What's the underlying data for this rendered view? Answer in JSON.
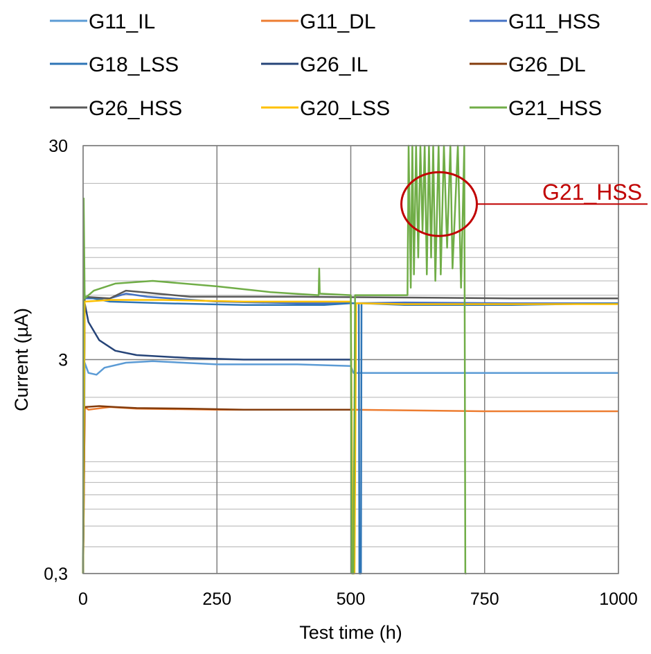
{
  "chart_data": {
    "type": "line",
    "xlabel": "Test time (h)",
    "ylabel": "Current (µA)",
    "xlim": [
      0,
      1000
    ],
    "ylim": [
      0.3,
      30
    ],
    "y_scale": "log",
    "x_ticks": [
      0,
      250,
      500,
      750,
      1000
    ],
    "x_tick_labels": [
      "0",
      "250",
      "500",
      "750",
      "1000"
    ],
    "y_ticks": [
      0.3,
      3,
      30
    ],
    "y_tick_labels": [
      "0,3",
      "3",
      "30"
    ],
    "grid": true,
    "legend_position": "top",
    "annotation": {
      "text": "G21_HSS",
      "series": "G21_HSS",
      "x_range": [
        610,
        720
      ]
    },
    "series": [
      {
        "name": "G11_IL",
        "color": "#5B9BD5",
        "points": [
          [
            0,
            0.3
          ],
          [
            3,
            2.9
          ],
          [
            10,
            2.6
          ],
          [
            25,
            2.55
          ],
          [
            40,
            2.75
          ],
          [
            80,
            2.9
          ],
          [
            130,
            2.95
          ],
          [
            250,
            2.85
          ],
          [
            400,
            2.85
          ],
          [
            500,
            2.8
          ],
          [
            505,
            2.6
          ],
          [
            600,
            2.6
          ],
          [
            800,
            2.6
          ],
          [
            1000,
            2.6
          ]
        ]
      },
      {
        "name": "G11_DL",
        "color": "#ED7D31",
        "points": [
          [
            0,
            0.3
          ],
          [
            3,
            1.8
          ],
          [
            10,
            1.75
          ],
          [
            50,
            1.8
          ],
          [
            100,
            1.77
          ],
          [
            250,
            1.75
          ],
          [
            500,
            1.75
          ],
          [
            750,
            1.72
          ],
          [
            1000,
            1.72
          ]
        ]
      },
      {
        "name": "G11_HSS",
        "color": "#4472C4",
        "points": [
          [
            0,
            0.3
          ],
          [
            3,
            5.8
          ],
          [
            50,
            5.8
          ],
          [
            80,
            6.1
          ],
          [
            120,
            5.9
          ],
          [
            250,
            5.6
          ],
          [
            400,
            5.5
          ],
          [
            500,
            5.5
          ],
          [
            505,
            5.5
          ],
          [
            600,
            5.55
          ],
          [
            800,
            5.5
          ],
          [
            1000,
            5.5
          ]
        ]
      },
      {
        "name": "G18_LSS",
        "color": "#2E75B6",
        "points": [
          [
            0,
            0.3
          ],
          [
            3,
            5.9
          ],
          [
            50,
            5.6
          ],
          [
            150,
            5.5
          ],
          [
            300,
            5.4
          ],
          [
            450,
            5.4
          ],
          [
            500,
            5.5
          ],
          [
            515,
            5.5
          ],
          [
            516,
            0.3
          ],
          [
            519,
            0.3
          ],
          [
            520,
            5.5
          ],
          [
            600,
            5.4
          ],
          [
            800,
            5.4
          ],
          [
            1000,
            5.5
          ]
        ]
      },
      {
        "name": "G26_IL",
        "color": "#264478",
        "points": [
          [
            0,
            0.3
          ],
          [
            3,
            5.5
          ],
          [
            10,
            4.5
          ],
          [
            30,
            3.7
          ],
          [
            60,
            3.3
          ],
          [
            100,
            3.15
          ],
          [
            200,
            3.05
          ],
          [
            300,
            3.0
          ],
          [
            400,
            3.0
          ],
          [
            500,
            3.0
          ]
        ]
      },
      {
        "name": "G26_DL",
        "color": "#843C0C",
        "points": [
          [
            0,
            0.3
          ],
          [
            3,
            1.8
          ],
          [
            30,
            1.82
          ],
          [
            60,
            1.8
          ],
          [
            100,
            1.78
          ],
          [
            200,
            1.77
          ],
          [
            300,
            1.75
          ],
          [
            400,
            1.75
          ],
          [
            500,
            1.75
          ]
        ]
      },
      {
        "name": "G26_HSS",
        "color": "#595959",
        "points": [
          [
            0,
            0.3
          ],
          [
            3,
            5.9
          ],
          [
            50,
            5.8
          ],
          [
            80,
            6.3
          ],
          [
            110,
            6.2
          ],
          [
            200,
            5.9
          ],
          [
            400,
            5.9
          ],
          [
            600,
            5.85
          ],
          [
            800,
            5.8
          ],
          [
            1000,
            5.8
          ]
        ]
      },
      {
        "name": "G20_LSS",
        "color": "#FFC000",
        "points": [
          [
            0,
            0.3
          ],
          [
            3,
            5.6
          ],
          [
            50,
            5.7
          ],
          [
            150,
            5.7
          ],
          [
            300,
            5.6
          ],
          [
            450,
            5.6
          ],
          [
            500,
            5.6
          ],
          [
            504,
            0.3
          ],
          [
            507,
            0.3
          ],
          [
            510,
            5.5
          ],
          [
            600,
            5.45
          ],
          [
            800,
            5.45
          ],
          [
            1000,
            5.45
          ]
        ]
      },
      {
        "name": "G21_HSS",
        "color": "#70AD47",
        "points": [
          [
            0,
            0.3
          ],
          [
            1,
            17
          ],
          [
            3,
            5.8
          ],
          [
            20,
            6.3
          ],
          [
            60,
            6.8
          ],
          [
            130,
            7.0
          ],
          [
            250,
            6.6
          ],
          [
            350,
            6.2
          ],
          [
            440,
            6.0
          ],
          [
            441,
            8.0
          ],
          [
            442,
            6.1
          ],
          [
            500,
            6.0
          ],
          [
            502,
            0.3
          ],
          [
            505,
            0.3
          ],
          [
            508,
            6.0
          ],
          [
            590,
            6.0
          ],
          [
            606,
            6.0
          ],
          [
            608,
            30
          ],
          [
            612,
            6.5
          ],
          [
            615,
            30
          ],
          [
            618,
            7.5
          ],
          [
            622,
            30
          ],
          [
            626,
            9
          ],
          [
            630,
            30
          ],
          [
            634,
            12
          ],
          [
            638,
            30
          ],
          [
            642,
            7.5
          ],
          [
            646,
            30
          ],
          [
            650,
            9
          ],
          [
            654,
            30
          ],
          [
            658,
            7.0
          ],
          [
            664,
            30
          ],
          [
            668,
            7.5
          ],
          [
            674,
            30
          ],
          [
            680,
            10
          ],
          [
            686,
            30
          ],
          [
            690,
            8.0
          ],
          [
            700,
            30
          ],
          [
            706,
            6.5
          ],
          [
            712,
            30
          ],
          [
            714,
            0.3
          ],
          [
            716,
            0.3
          ]
        ]
      }
    ]
  }
}
